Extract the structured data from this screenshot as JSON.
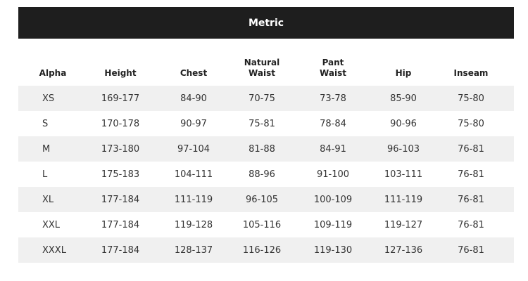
{
  "title": "Metric",
  "columns": [
    "Alpha",
    "Height",
    "Chest",
    "Natural\nWaist",
    "Pant\nWaist",
    "Hip",
    "Inseam"
  ],
  "rows": [
    [
      "XS",
      "169-177",
      "84-90",
      "70-75",
      "73-78",
      "85-90",
      "75-80"
    ],
    [
      "S",
      "170-178",
      "90-97",
      "75-81",
      "78-84",
      "90-96",
      "75-80"
    ],
    [
      "M",
      "173-180",
      "97-104",
      "81-88",
      "84-91",
      "96-103",
      "76-81"
    ],
    [
      "L",
      "175-183",
      "104-111",
      "88-96",
      "91-100",
      "103-111",
      "76-81"
    ],
    [
      "XL",
      "177-184",
      "111-119",
      "96-105",
      "100-109",
      "111-119",
      "76-81"
    ],
    [
      "XXL",
      "177-184",
      "119-128",
      "105-116",
      "109-119",
      "119-127",
      "76-81"
    ],
    [
      "XXXL",
      "177-184",
      "128-137",
      "116-126",
      "119-130",
      "127-136",
      "76-81"
    ]
  ]
}
